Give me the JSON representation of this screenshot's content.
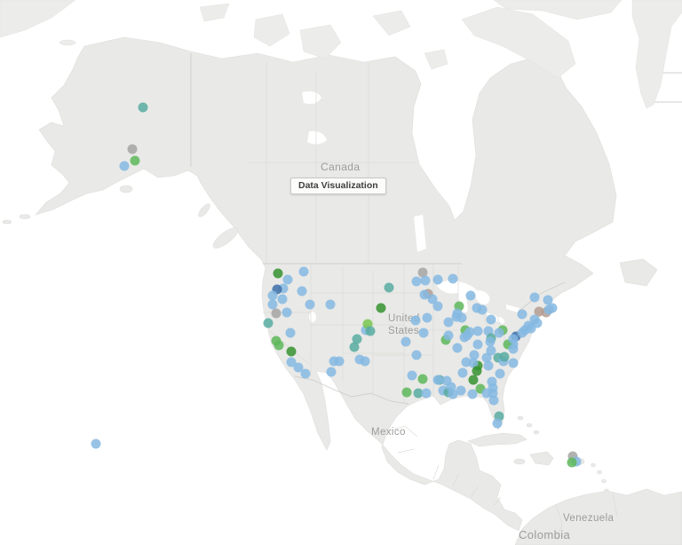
{
  "map": {
    "labels": {
      "canada": "Canada",
      "united_states": "United\nStates",
      "mexico": "Mexico",
      "venezuela": "Venezuela",
      "colombia": "Colombia"
    },
    "tooltip": {
      "text": "Data Visualization"
    },
    "palette": {
      "b": "#85b9e2",
      "db": "#3d6fa8",
      "g": "#5eb75a",
      "lg": "#7ac74f",
      "dg": "#35922f",
      "t": "#58aba1",
      "gy": "#a5a5a3",
      "tn": "#b39c90"
    },
    "points": [
      [
        161,
        121,
        "t"
      ],
      [
        149,
        168,
        "gy"
      ],
      [
        152,
        181,
        "g"
      ],
      [
        140,
        187,
        "b"
      ],
      [
        108,
        500,
        "b"
      ],
      [
        313,
        308,
        "dg"
      ],
      [
        342,
        306,
        "b"
      ],
      [
        324,
        315,
        "b"
      ],
      [
        319,
        325,
        "b"
      ],
      [
        312,
        326,
        "db"
      ],
      [
        307,
        333,
        "b"
      ],
      [
        318,
        337,
        "b"
      ],
      [
        307,
        343,
        "b"
      ],
      [
        311,
        353,
        "gy"
      ],
      [
        323,
        352,
        "b"
      ],
      [
        302,
        364,
        "t"
      ],
      [
        327,
        375,
        "b"
      ],
      [
        311,
        384,
        "g"
      ],
      [
        314,
        389,
        "g"
      ],
      [
        328,
        396,
        "dg"
      ],
      [
        328,
        408,
        "b"
      ],
      [
        336,
        414,
        "b"
      ],
      [
        344,
        421,
        "b"
      ],
      [
        340,
        328,
        "b"
      ],
      [
        349,
        343,
        "b"
      ],
      [
        372,
        343,
        "b"
      ],
      [
        376,
        407,
        "b"
      ],
      [
        382,
        407,
        "b"
      ],
      [
        399,
        391,
        "t"
      ],
      [
        402,
        382,
        "t"
      ],
      [
        405,
        405,
        "b"
      ],
      [
        411,
        407,
        "b"
      ],
      [
        412,
        372,
        "b"
      ],
      [
        414,
        365,
        "lg"
      ],
      [
        417,
        373,
        "t"
      ],
      [
        429,
        347,
        "dg"
      ],
      [
        438,
        324,
        "t"
      ],
      [
        373,
        419,
        "b"
      ],
      [
        457,
        385,
        "b"
      ],
      [
        464,
        423,
        "b"
      ],
      [
        469,
        400,
        "b"
      ],
      [
        476,
        427,
        "g"
      ],
      [
        495,
        428,
        "t"
      ],
      [
        503,
        429,
        "b"
      ],
      [
        458,
        442,
        "g"
      ],
      [
        471,
        443,
        "t"
      ],
      [
        480,
        443,
        "b"
      ],
      [
        499,
        440,
        "b"
      ],
      [
        505,
        442,
        "t"
      ],
      [
        510,
        444,
        "b"
      ],
      [
        493,
        428,
        "b"
      ],
      [
        476,
        307,
        "gy"
      ],
      [
        469,
        317,
        "b"
      ],
      [
        479,
        316,
        "b"
      ],
      [
        493,
        315,
        "b"
      ],
      [
        510,
        314,
        "b"
      ],
      [
        482,
        331,
        "tn"
      ],
      [
        478,
        332,
        "b"
      ],
      [
        487,
        337,
        "b"
      ],
      [
        493,
        345,
        "b"
      ],
      [
        517,
        345,
        "g"
      ],
      [
        514,
        357,
        "b"
      ],
      [
        520,
        358,
        "b"
      ],
      [
        481,
        358,
        "b"
      ],
      [
        468,
        361,
        "b"
      ],
      [
        530,
        333,
        "b"
      ],
      [
        537,
        347,
        "b"
      ],
      [
        543,
        349,
        "b"
      ],
      [
        553,
        360,
        "b"
      ],
      [
        515,
        353,
        "b"
      ],
      [
        505,
        363,
        "b"
      ],
      [
        477,
        375,
        "b"
      ],
      [
        524,
        372,
        "g"
      ],
      [
        529,
        374,
        "b"
      ],
      [
        526,
        378,
        "b"
      ],
      [
        538,
        373,
        "b"
      ],
      [
        550,
        373,
        "b"
      ],
      [
        566,
        372,
        "g"
      ],
      [
        553,
        381,
        "t"
      ],
      [
        562,
        375,
        "b"
      ],
      [
        581,
        379,
        "db"
      ],
      [
        578,
        388,
        "b"
      ],
      [
        572,
        388,
        "g"
      ],
      [
        538,
        388,
        "b"
      ],
      [
        515,
        392,
        "b"
      ],
      [
        534,
        400,
        "b"
      ],
      [
        548,
        403,
        "b"
      ],
      [
        561,
        403,
        "t"
      ],
      [
        567,
        407,
        "b"
      ],
      [
        538,
        412,
        "dg"
      ],
      [
        550,
        412,
        "b"
      ],
      [
        578,
        409,
        "b"
      ],
      [
        588,
        354,
        "b"
      ],
      [
        602,
        335,
        "b"
      ],
      [
        617,
        338,
        "b"
      ],
      [
        622,
        347,
        "b"
      ],
      [
        607,
        351,
        "tn"
      ],
      [
        615,
        352,
        "tn"
      ],
      [
        618,
        349,
        "b"
      ],
      [
        602,
        360,
        "b"
      ],
      [
        605,
        364,
        "b"
      ],
      [
        595,
        367,
        "b"
      ],
      [
        598,
        370,
        "b"
      ],
      [
        591,
        372,
        "b"
      ],
      [
        588,
        375,
        "b"
      ],
      [
        578,
        382,
        "b"
      ],
      [
        502,
        383,
        "g"
      ],
      [
        505,
        378,
        "b"
      ],
      [
        523,
        380,
        "b"
      ],
      [
        552,
        385,
        "b"
      ],
      [
        578,
        393,
        "b"
      ],
      [
        553,
        395,
        "b"
      ],
      [
        568,
        402,
        "t"
      ],
      [
        525,
        408,
        "b"
      ],
      [
        533,
        409,
        "b"
      ],
      [
        537,
        418,
        "dg"
      ],
      [
        521,
        420,
        "b"
      ],
      [
        533,
        428,
        "dg"
      ],
      [
        563,
        421,
        "b"
      ],
      [
        541,
        438,
        "g"
      ],
      [
        554,
        430,
        "b"
      ],
      [
        555,
        437,
        "b"
      ],
      [
        555,
        443,
        "b"
      ],
      [
        556,
        451,
        "b"
      ],
      [
        562,
        469,
        "t"
      ],
      [
        560,
        477,
        "b"
      ],
      [
        508,
        436,
        "b"
      ],
      [
        519,
        440,
        "b"
      ],
      [
        532,
        444,
        "b"
      ],
      [
        548,
        443,
        "b"
      ],
      [
        645,
        514,
        "gy"
      ],
      [
        649,
        520,
        "b"
      ],
      [
        644,
        521,
        "g"
      ]
    ]
  }
}
